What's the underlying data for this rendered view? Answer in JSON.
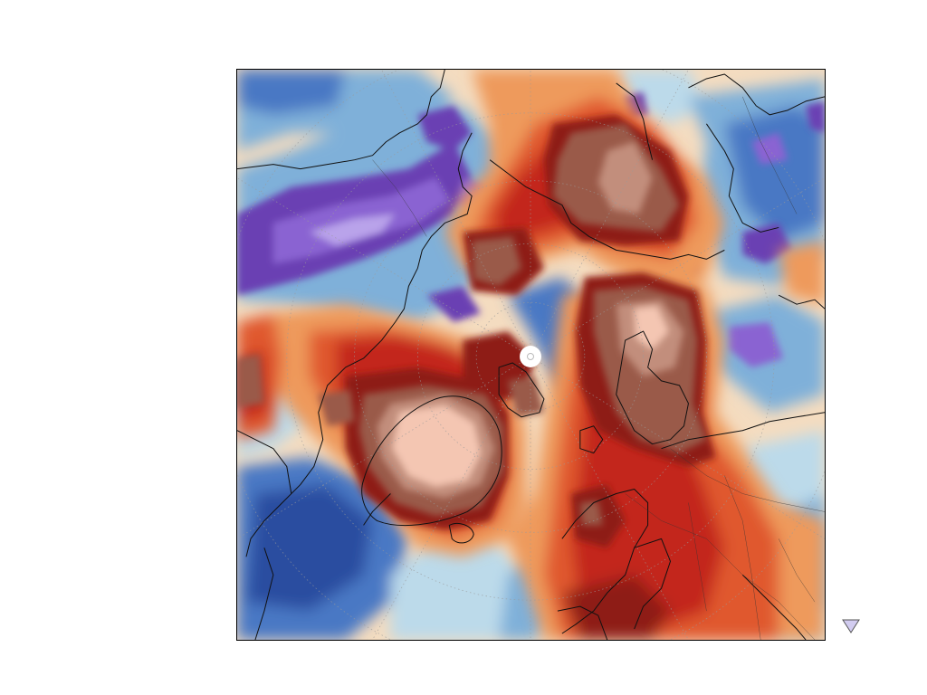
{
  "map": {
    "projection": "north-polar-stereographic",
    "colors": {
      "deep_purple": "#6a3fb3",
      "purple": "#8a63d2",
      "light_purple": "#b9a3ea",
      "navy": "#2b4ea0",
      "blue": "#4a78c4",
      "mid_blue": "#7fb0d9",
      "light_blue": "#bcdaea",
      "near_white": "#f2f3f4",
      "pale_orange": "#f7d3a3",
      "orange": "#ee9a5b",
      "red_orange": "#e0582f",
      "red": "#c3261e",
      "dark_red": "#8e1a15",
      "brown": "#9a5a4a",
      "light_brown": "#c28e7c",
      "salmon": "#f4c6b2"
    },
    "features": [
      "north-pole-marker",
      "coastlines",
      "country-borders",
      "lat-lon-graticule"
    ],
    "legend_marker": "down-triangle-icon"
  }
}
